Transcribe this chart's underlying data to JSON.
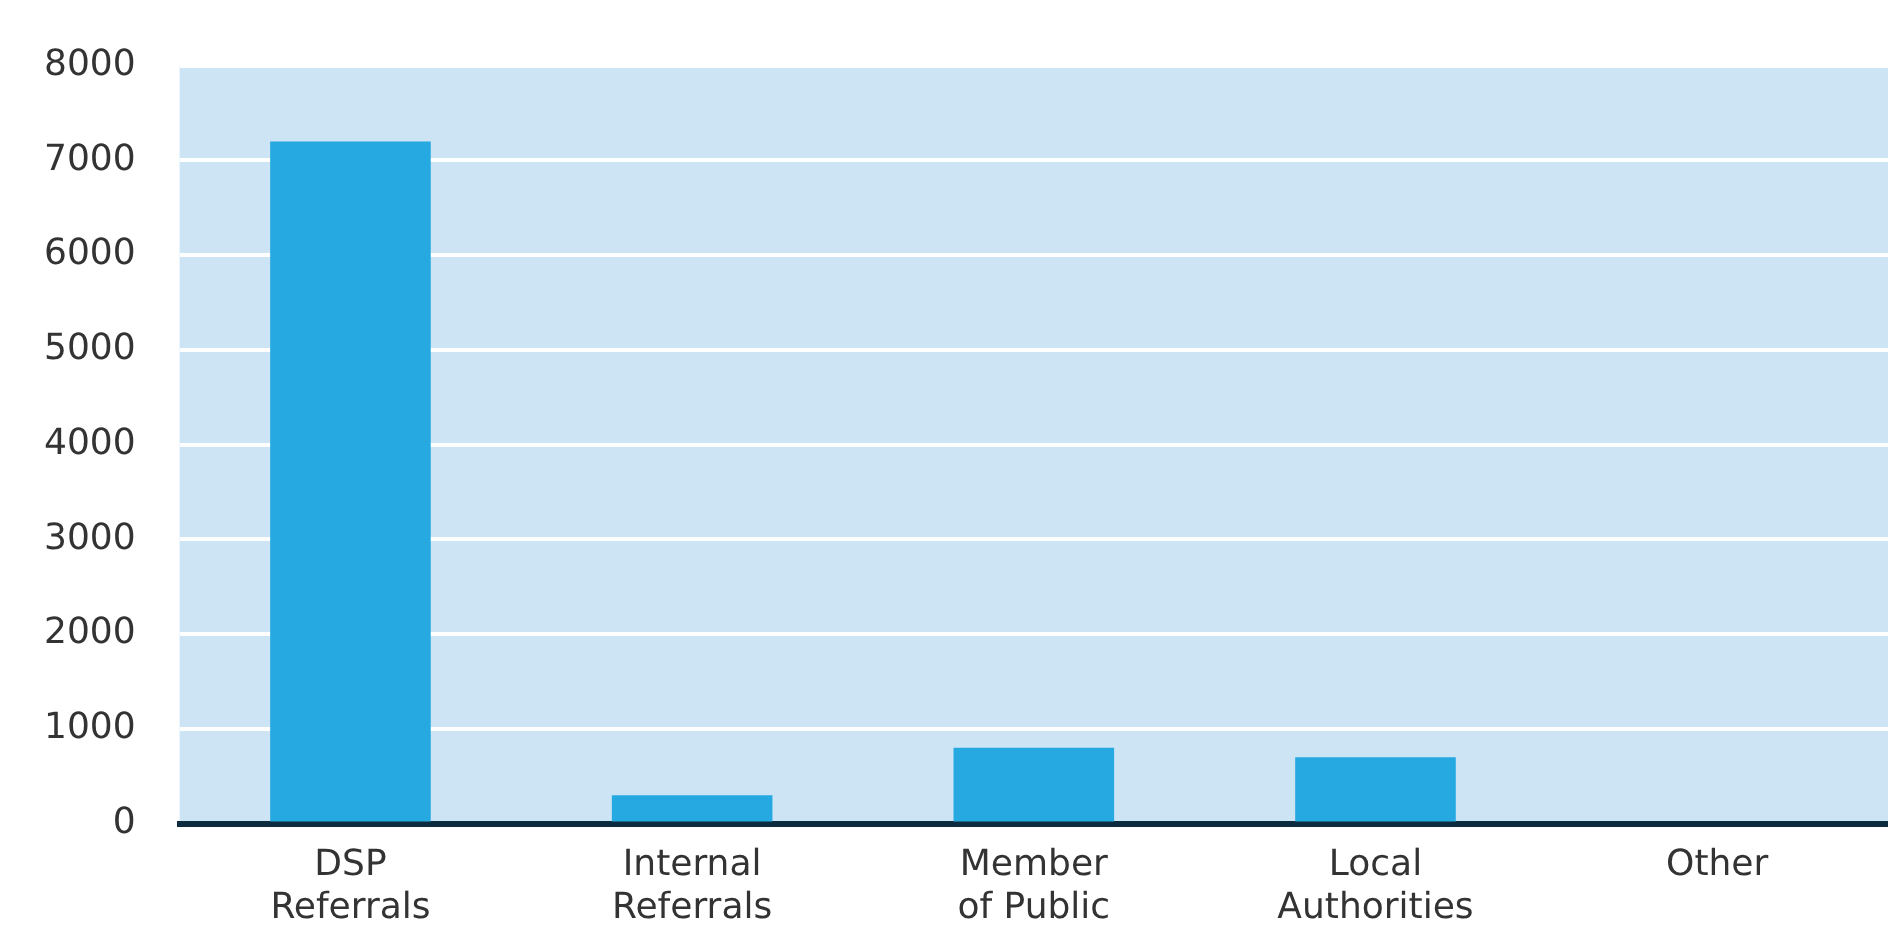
{
  "chart_data": {
    "type": "bar",
    "categories": [
      "DSP Referrals",
      "Internal Referrals",
      "Member of Public",
      "Local Authorities",
      "Other"
    ],
    "values": [
      7200,
      300,
      800,
      700,
      0
    ],
    "color": "#25a9e0",
    "ylim": [
      0,
      8000
    ],
    "yticks": [
      0,
      1000,
      2000,
      3000,
      4000,
      5000,
      6000,
      7000,
      8000
    ],
    "grid": "y",
    "legend": false
  }
}
